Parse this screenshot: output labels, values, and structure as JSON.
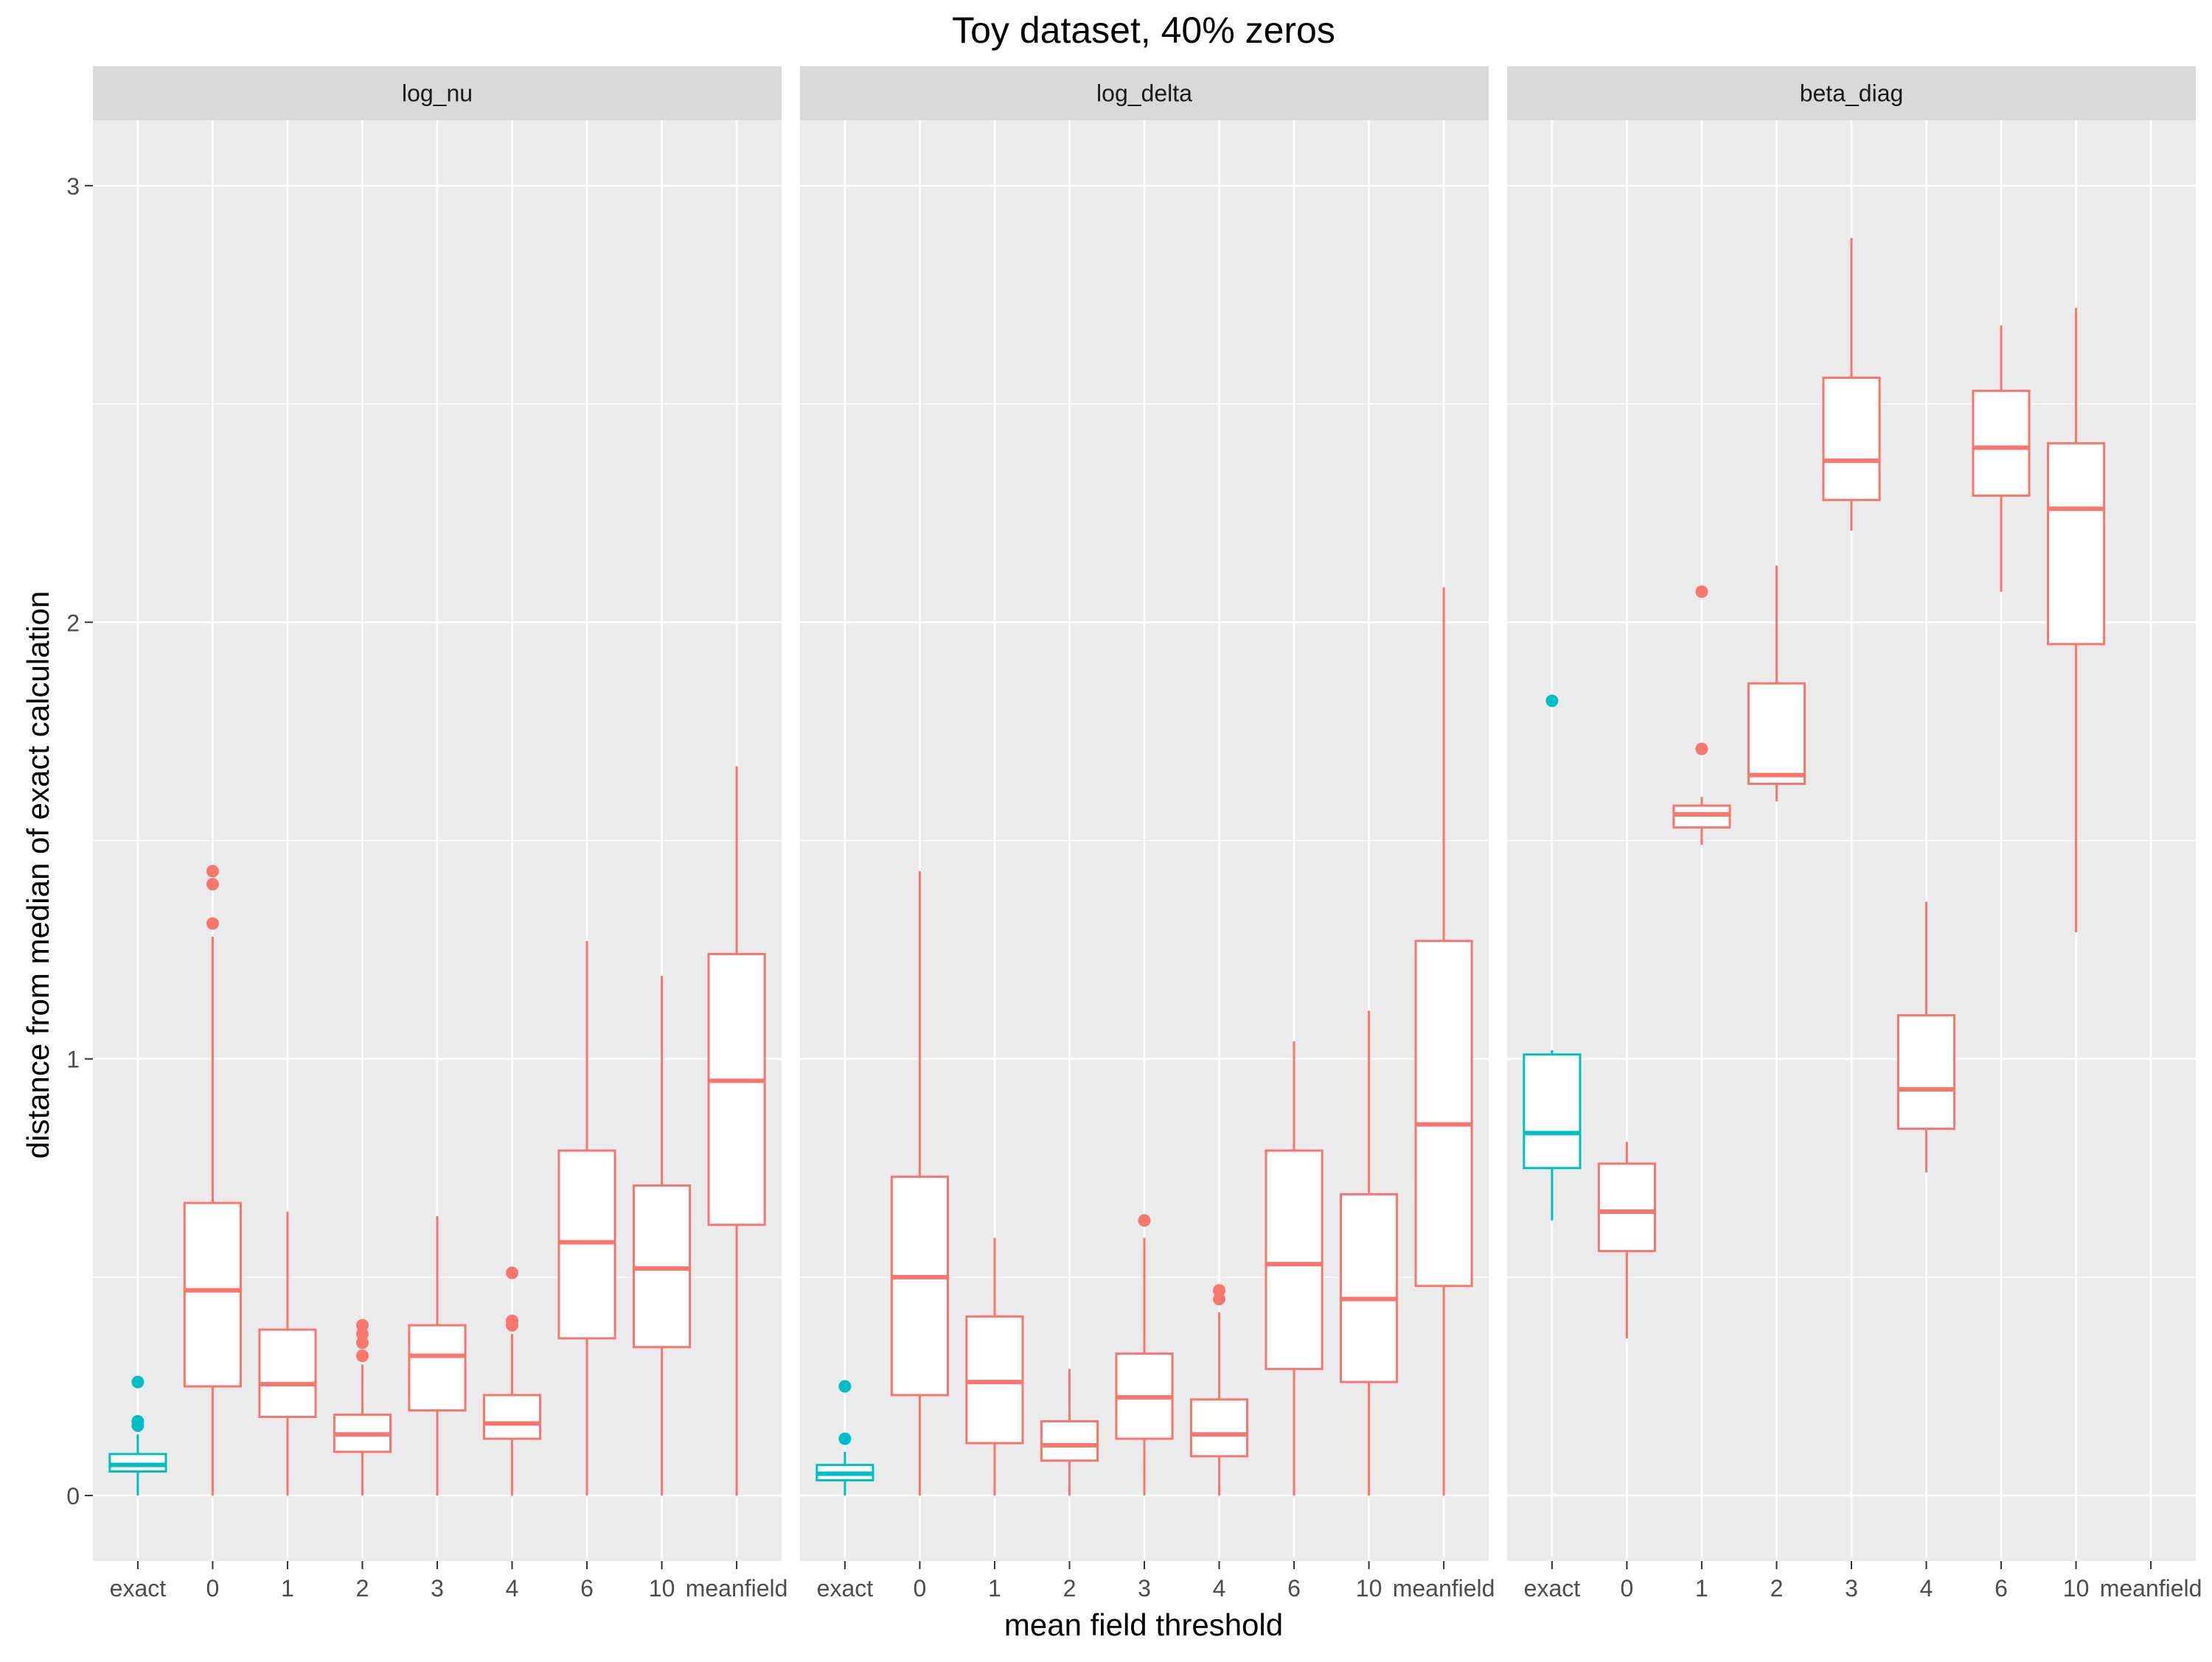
{
  "chart_data": {
    "type": "box",
    "title": "Toy dataset, 40% zeros",
    "xlabel": "mean field threshold",
    "ylabel": "distance from median of exact calculation",
    "categories": [
      "exact",
      "0",
      "1",
      "2",
      "3",
      "4",
      "6",
      "10",
      "meanfield"
    ],
    "yticks": [
      0,
      1,
      2,
      3
    ],
    "ylim": [
      -0.15,
      3.15
    ],
    "grid": true,
    "legend": "none",
    "colors": {
      "exact": "#00BFC4",
      "other": "#F8766D",
      "panel_bg": "#EBEBEB",
      "strip_bg": "#D9D9D9",
      "grid": "#FFFFFF"
    },
    "panels": [
      {
        "name": "log_nu",
        "boxes": [
          {
            "cat": "exact",
            "min": 0.0,
            "q1": 0.055,
            "median": 0.07,
            "q3": 0.095,
            "max": 0.14,
            "outliers": [
              0.16,
              0.17,
              0.26
            ]
          },
          {
            "cat": "0",
            "min": 0.0,
            "q1": 0.25,
            "median": 0.47,
            "q3": 0.67,
            "max": 1.28,
            "outliers": [
              1.31,
              1.4,
              1.43
            ]
          },
          {
            "cat": "1",
            "min": 0.0,
            "q1": 0.18,
            "median": 0.255,
            "q3": 0.38,
            "max": 0.65,
            "outliers": []
          },
          {
            "cat": "2",
            "min": 0.0,
            "q1": 0.1,
            "median": 0.14,
            "q3": 0.185,
            "max": 0.3,
            "outliers": [
              0.32,
              0.35,
              0.37,
              0.39
            ]
          },
          {
            "cat": "3",
            "min": 0.0,
            "q1": 0.195,
            "median": 0.32,
            "q3": 0.39,
            "max": 0.64,
            "outliers": []
          },
          {
            "cat": "4",
            "min": 0.0,
            "q1": 0.13,
            "median": 0.165,
            "q3": 0.23,
            "max": 0.37,
            "outliers": [
              0.39,
              0.4,
              0.51
            ]
          },
          {
            "cat": "6",
            "min": 0.0,
            "q1": 0.36,
            "median": 0.58,
            "q3": 0.79,
            "max": 1.27,
            "outliers": []
          },
          {
            "cat": "10",
            "min": 0.0,
            "q1": 0.34,
            "median": 0.52,
            "q3": 0.71,
            "max": 1.19,
            "outliers": []
          },
          {
            "cat": "meanfield",
            "min": 0.0,
            "q1": 0.62,
            "median": 0.95,
            "q3": 1.24,
            "max": 1.67,
            "outliers": []
          }
        ]
      },
      {
        "name": "log_delta",
        "boxes": [
          {
            "cat": "exact",
            "min": 0.0,
            "q1": 0.035,
            "median": 0.05,
            "q3": 0.07,
            "max": 0.1,
            "outliers": [
              0.13,
              0.25
            ]
          },
          {
            "cat": "0",
            "min": 0.0,
            "q1": 0.23,
            "median": 0.5,
            "q3": 0.73,
            "max": 1.43,
            "outliers": []
          },
          {
            "cat": "1",
            "min": 0.0,
            "q1": 0.12,
            "median": 0.26,
            "q3": 0.41,
            "max": 0.59,
            "outliers": []
          },
          {
            "cat": "2",
            "min": 0.0,
            "q1": 0.08,
            "median": 0.115,
            "q3": 0.17,
            "max": 0.29,
            "outliers": []
          },
          {
            "cat": "3",
            "min": 0.0,
            "q1": 0.13,
            "median": 0.225,
            "q3": 0.325,
            "max": 0.59,
            "outliers": [
              0.63
            ]
          },
          {
            "cat": "4",
            "min": 0.0,
            "q1": 0.09,
            "median": 0.14,
            "q3": 0.22,
            "max": 0.42,
            "outliers": [
              0.45,
              0.47
            ]
          },
          {
            "cat": "6",
            "min": 0.0,
            "q1": 0.29,
            "median": 0.53,
            "q3": 0.79,
            "max": 1.04,
            "outliers": []
          },
          {
            "cat": "10",
            "min": 0.0,
            "q1": 0.26,
            "median": 0.45,
            "q3": 0.69,
            "max": 1.11,
            "outliers": []
          },
          {
            "cat": "meanfield",
            "min": 0.0,
            "q1": 0.48,
            "median": 0.85,
            "q3": 1.27,
            "max": 2.08,
            "outliers": []
          }
        ]
      },
      {
        "name": "beta_diag",
        "boxes": [
          {
            "cat": "exact",
            "min": 0.63,
            "q1": 0.75,
            "median": 0.83,
            "q3": 1.01,
            "max": 1.02,
            "outliers": [
              1.82
            ]
          },
          {
            "cat": "0",
            "min": 0.36,
            "q1": 0.56,
            "median": 0.65,
            "q3": 0.76,
            "max": 0.81,
            "outliers": []
          },
          {
            "cat": "1",
            "min": 1.49,
            "q1": 1.53,
            "median": 1.56,
            "q3": 1.58,
            "max": 1.6,
            "outliers": [
              1.71,
              2.07
            ]
          },
          {
            "cat": "2",
            "min": 1.59,
            "q1": 1.63,
            "median": 1.65,
            "q3": 1.86,
            "max": 2.13,
            "outliers": []
          },
          {
            "cat": "3",
            "min": 2.21,
            "q1": 2.28,
            "median": 2.37,
            "q3": 2.56,
            "max": 2.88,
            "outliers": []
          },
          {
            "cat": "4",
            "min": 0.74,
            "q1": 0.84,
            "median": 0.93,
            "q3": 1.1,
            "max": 1.36,
            "outliers": []
          },
          {
            "cat": "6",
            "min": 2.07,
            "q1": 2.29,
            "median": 2.4,
            "q3": 2.53,
            "max": 2.68,
            "outliers": []
          },
          {
            "cat": "10",
            "min": 1.29,
            "q1": 1.95,
            "median": 2.26,
            "q3": 2.41,
            "max": 2.72,
            "outliers": []
          }
        ]
      }
    ]
  }
}
